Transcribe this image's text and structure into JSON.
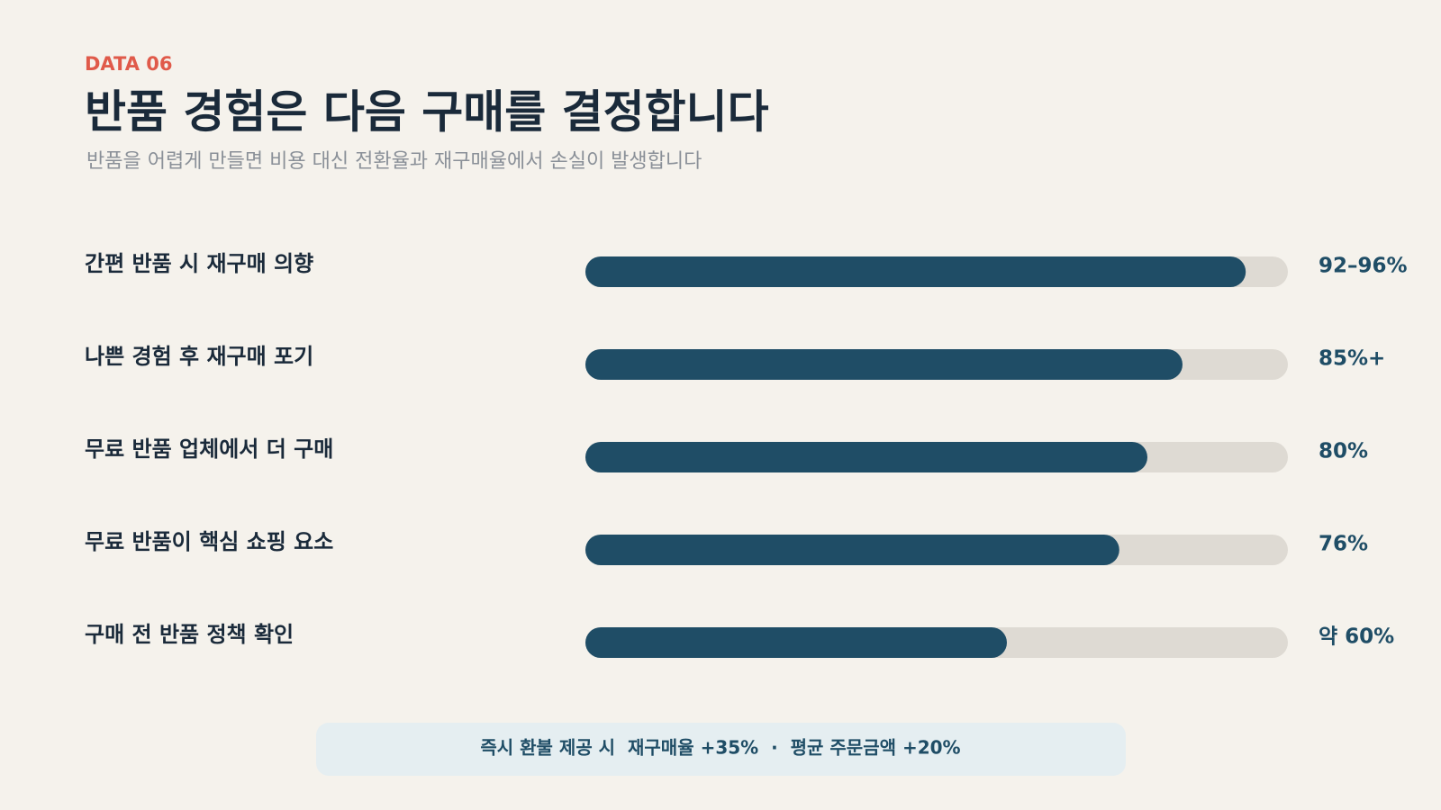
{
  "chart_data": {
    "type": "bar",
    "orientation": "horizontal",
    "kicker": "DATA 06",
    "title": "반품 경험은 다음 구매를 결정합니다",
    "subtitle": "반품을 어렵게 만들면 비용 대신 전환율과 재구매율에서 손실이 발생합니다",
    "categories": [
      "간편 반품 시 재구매 의향",
      "나쁜 경험 후 재구매 포기",
      "무료 반품 업체에서 더 구매",
      "무료 반품이 핵심 쇼핑 요소",
      "구매 전 반품 정책 확인"
    ],
    "values": [
      94,
      85,
      80,
      76,
      60
    ],
    "value_labels": [
      "92–96%",
      "85%+",
      "80%",
      "76%",
      "약 60%"
    ],
    "color": "#1f4d66",
    "track_color": "#dedad3",
    "xlim": [
      0,
      100
    ],
    "note": "즉시 환불 제공 시  재구매율 +35%  ·  평균 주문금액 +20%"
  }
}
